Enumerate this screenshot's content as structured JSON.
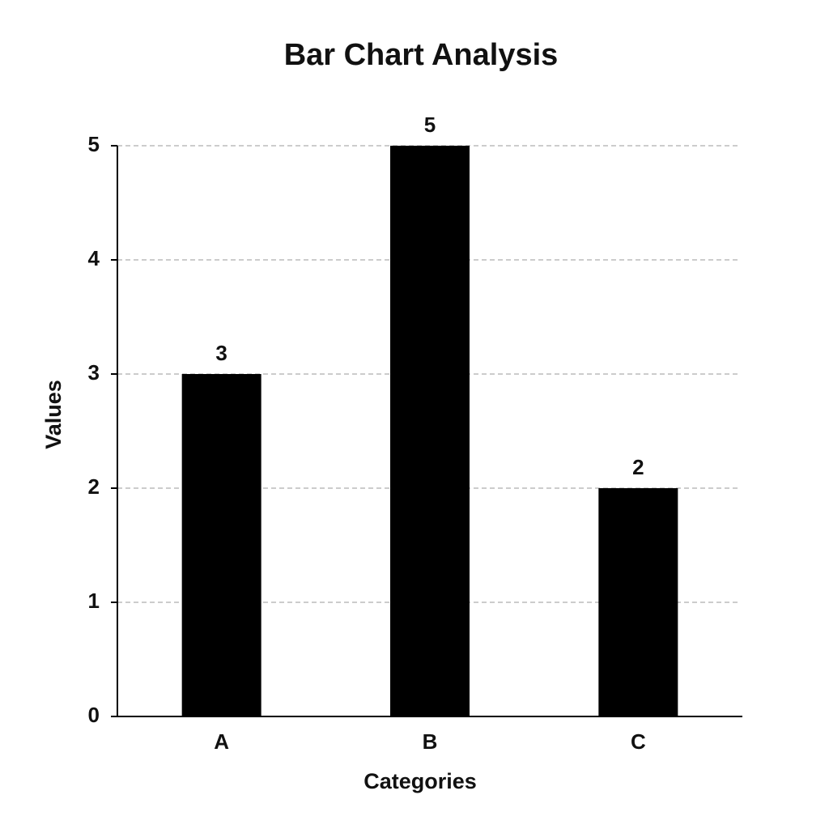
{
  "chart_data": {
    "type": "bar",
    "title": "Bar Chart Analysis",
    "x_label": "Categories",
    "y_label": "Values",
    "categories": [
      "A",
      "B",
      "C"
    ],
    "values": [
      3,
      5,
      2
    ],
    "color": "#000000",
    "ylim": [
      0,
      5
    ],
    "yticks": [
      0,
      1,
      2,
      3,
      4,
      5
    ],
    "grid": true
  }
}
